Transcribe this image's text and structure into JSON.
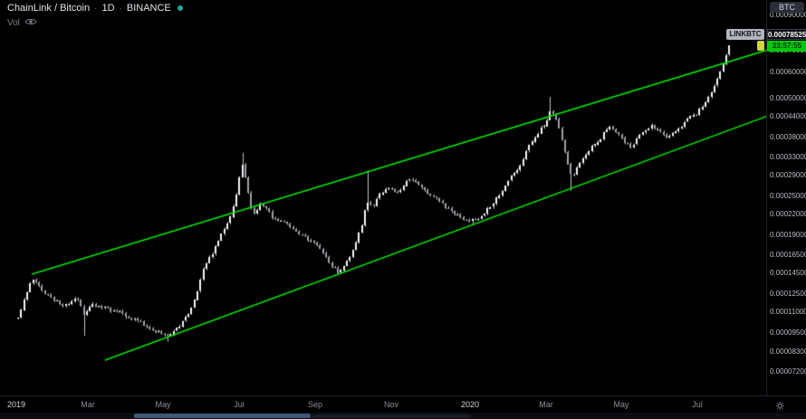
{
  "app": {
    "bg": "#000000",
    "divider": "#1e222d"
  },
  "legend": {
    "symbol": "ChainLink / Bitcoin",
    "separator": "·",
    "interval": "1D",
    "exchange": "BINANCE",
    "status_dot_color": "#26a69a",
    "indicator_label": "Vol"
  },
  "price_scale": {
    "currency_badge": "BTC",
    "symbol_tag": "LINKBTC",
    "last_price": "0.00078525",
    "countdown": "23:57:55",
    "tag_colors": {
      "symbol_bg": "#b2b5be",
      "symbol_text": "#131722",
      "price_bg": "#0c0e15",
      "price_text": "#ffffff",
      "countdown_bg": "#00c806",
      "countdown_text": "#07300e",
      "clock_chip_bg": "#cfd544"
    }
  },
  "chart_data": {
    "type": "candlestick",
    "title": "ChainLink / Bitcoin · 1D · BINANCE",
    "scale": "logarithmic",
    "unit": "BTC",
    "note": "prices stored in satoshi (1e-8 BTC); x stored as plot pixel column, Jan 2019 - Jul 2020 daily",
    "x_ticks": [
      "2019",
      "Mar",
      "May",
      "Jul",
      "Sep",
      "Nov",
      "2020",
      "Mar",
      "May",
      "Jul"
    ],
    "y_ticks": [
      "0.00090000",
      "0.00070000",
      "0.00060000",
      "0.00050000",
      "0.00044000",
      "0.00038000",
      "0.00033000",
      "0.00029000",
      "0.00025000",
      "0.00022000",
      "0.00019000",
      "0.00016500",
      "0.00014500",
      "0.00012500",
      "0.00011000",
      "0.00009500",
      "0.00008300",
      "0.00007200"
    ],
    "price_range_btc": [
      "0.00006300",
      "0.00095000"
    ],
    "last_close_sats": 78525,
    "price_path_sats": [
      [
        20,
        10500
      ],
      [
        26,
        11900
      ],
      [
        31,
        13000
      ],
      [
        36,
        13900
      ],
      [
        41,
        13400
      ],
      [
        46,
        12800
      ],
      [
        52,
        12400
      ],
      [
        58,
        12100
      ],
      [
        65,
        11750
      ],
      [
        72,
        11500
      ],
      [
        79,
        11850
      ],
      [
        85,
        12100
      ],
      [
        89,
        11400
      ],
      [
        92,
        10850
      ],
      [
        96,
        11200
      ],
      [
        101,
        11600
      ],
      [
        107,
        11500
      ],
      [
        113,
        11400
      ],
      [
        120,
        11250
      ],
      [
        127,
        11100
      ],
      [
        134,
        10900
      ],
      [
        141,
        10650
      ],
      [
        148,
        10400
      ],
      [
        155,
        10200
      ],
      [
        161,
        10000
      ],
      [
        167,
        9820
      ],
      [
        173,
        9640
      ],
      [
        179,
        9480
      ],
      [
        185,
        9350
      ],
      [
        190,
        9550
      ],
      [
        196,
        9850
      ],
      [
        202,
        10300
      ],
      [
        208,
        10950
      ],
      [
        214,
        11900
      ],
      [
        220,
        13300
      ],
      [
        226,
        15300
      ],
      [
        232,
        16400
      ],
      [
        238,
        17400
      ],
      [
        244,
        19000
      ],
      [
        250,
        20600
      ],
      [
        256,
        22400
      ],
      [
        261,
        25500
      ],
      [
        265,
        29500
      ],
      [
        268,
        32000
      ],
      [
        271,
        28800
      ],
      [
        274,
        25600
      ],
      [
        278,
        22700
      ],
      [
        282,
        21900
      ],
      [
        286,
        23800
      ],
      [
        290,
        23400
      ],
      [
        295,
        22700
      ],
      [
        300,
        21700
      ],
      [
        305,
        20900
      ],
      [
        311,
        21200
      ],
      [
        317,
        20750
      ],
      [
        323,
        19800
      ],
      [
        329,
        19200
      ],
      [
        335,
        18700
      ],
      [
        341,
        18300
      ],
      [
        347,
        17900
      ],
      [
        353,
        17300
      ],
      [
        359,
        16400
      ],
      [
        365,
        15500
      ],
      [
        370,
        14900
      ],
      [
        374,
        14550
      ],
      [
        379,
        15250
      ],
      [
        384,
        16000
      ],
      [
        390,
        17100
      ],
      [
        395,
        18700
      ],
      [
        400,
        20700
      ],
      [
        404,
        23200
      ],
      [
        407,
        24600
      ],
      [
        410,
        23200
      ],
      [
        414,
        23900
      ],
      [
        418,
        24900
      ],
      [
        423,
        25900
      ],
      [
        428,
        26500
      ],
      [
        433,
        26200
      ],
      [
        438,
        25900
      ],
      [
        443,
        26400
      ],
      [
        448,
        27600
      ],
      [
        452,
        28200
      ],
      [
        457,
        27700
      ],
      [
        462,
        27300
      ],
      [
        467,
        26400
      ],
      [
        472,
        25700
      ],
      [
        478,
        25100
      ],
      [
        484,
        24400
      ],
      [
        490,
        23500
      ],
      [
        496,
        22800
      ],
      [
        502,
        22100
      ],
      [
        508,
        21600
      ],
      [
        514,
        21250
      ],
      [
        520,
        20950
      ],
      [
        526,
        21200
      ],
      [
        532,
        21900
      ],
      [
        538,
        22700
      ],
      [
        544,
        23700
      ],
      [
        550,
        25000
      ],
      [
        556,
        26400
      ],
      [
        562,
        28000
      ],
      [
        568,
        29500
      ],
      [
        574,
        31000
      ],
      [
        580,
        33800
      ],
      [
        586,
        36400
      ],
      [
        592,
        38500
      ],
      [
        597,
        40200
      ],
      [
        602,
        41600
      ],
      [
        606,
        44500
      ],
      [
        609,
        46500
      ],
      [
        612,
        44000
      ],
      [
        616,
        41300
      ],
      [
        620,
        37600
      ],
      [
        624,
        34000
      ],
      [
        628,
        31000
      ],
      [
        631,
        28600
      ],
      [
        635,
        29800
      ],
      [
        639,
        31200
      ],
      [
        644,
        32700
      ],
      [
        649,
        34000
      ],
      [
        654,
        35400
      ],
      [
        659,
        36700
      ],
      [
        664,
        37900
      ],
      [
        669,
        40200
      ],
      [
        673,
        41300
      ],
      [
        677,
        40300
      ],
      [
        681,
        39300
      ],
      [
        685,
        38100
      ],
      [
        689,
        37000
      ],
      [
        693,
        36000
      ],
      [
        697,
        35700
      ],
      [
        701,
        36800
      ],
      [
        705,
        38100
      ],
      [
        710,
        39400
      ],
      [
        715,
        40500
      ],
      [
        719,
        41400
      ],
      [
        724,
        40700
      ],
      [
        729,
        39800
      ],
      [
        734,
        38100
      ],
      [
        739,
        38500
      ],
      [
        744,
        39200
      ],
      [
        749,
        40400
      ],
      [
        754,
        41600
      ],
      [
        759,
        42900
      ],
      [
        764,
        44100
      ],
      [
        769,
        44900
      ],
      [
        774,
        47000
      ],
      [
        779,
        49100
      ],
      [
        783,
        50800
      ],
      [
        787,
        53000
      ],
      [
        791,
        55600
      ],
      [
        794,
        58600
      ],
      [
        797,
        61500
      ],
      [
        800,
        65000
      ],
      [
        803,
        69500
      ],
      [
        806,
        73800
      ],
      [
        808,
        78000
      ]
    ],
    "high_spikes_sats": [
      [
        267,
        34000
      ],
      [
        406,
        30000
      ],
      [
        608,
        50500
      ],
      [
        808,
        79500
      ]
    ],
    "low_spikes_sats": [
      [
        92,
        9300
      ],
      [
        185,
        8950
      ],
      [
        374,
        14300
      ],
      [
        522,
        20300
      ],
      [
        631,
        26000
      ]
    ],
    "channel": {
      "color": "#00e600",
      "upper": [
        [
          35,
          14400
        ],
        [
          848,
          70560
        ]
      ],
      "lower": [
        [
          116,
          7836
        ],
        [
          848,
          44190
        ]
      ]
    },
    "candle_colors": {
      "up": "#f5f5f5",
      "down": "#9da0a8",
      "wick": "#c2c5cc"
    }
  },
  "footer": {
    "taskbar_color": "#3d5878"
  }
}
